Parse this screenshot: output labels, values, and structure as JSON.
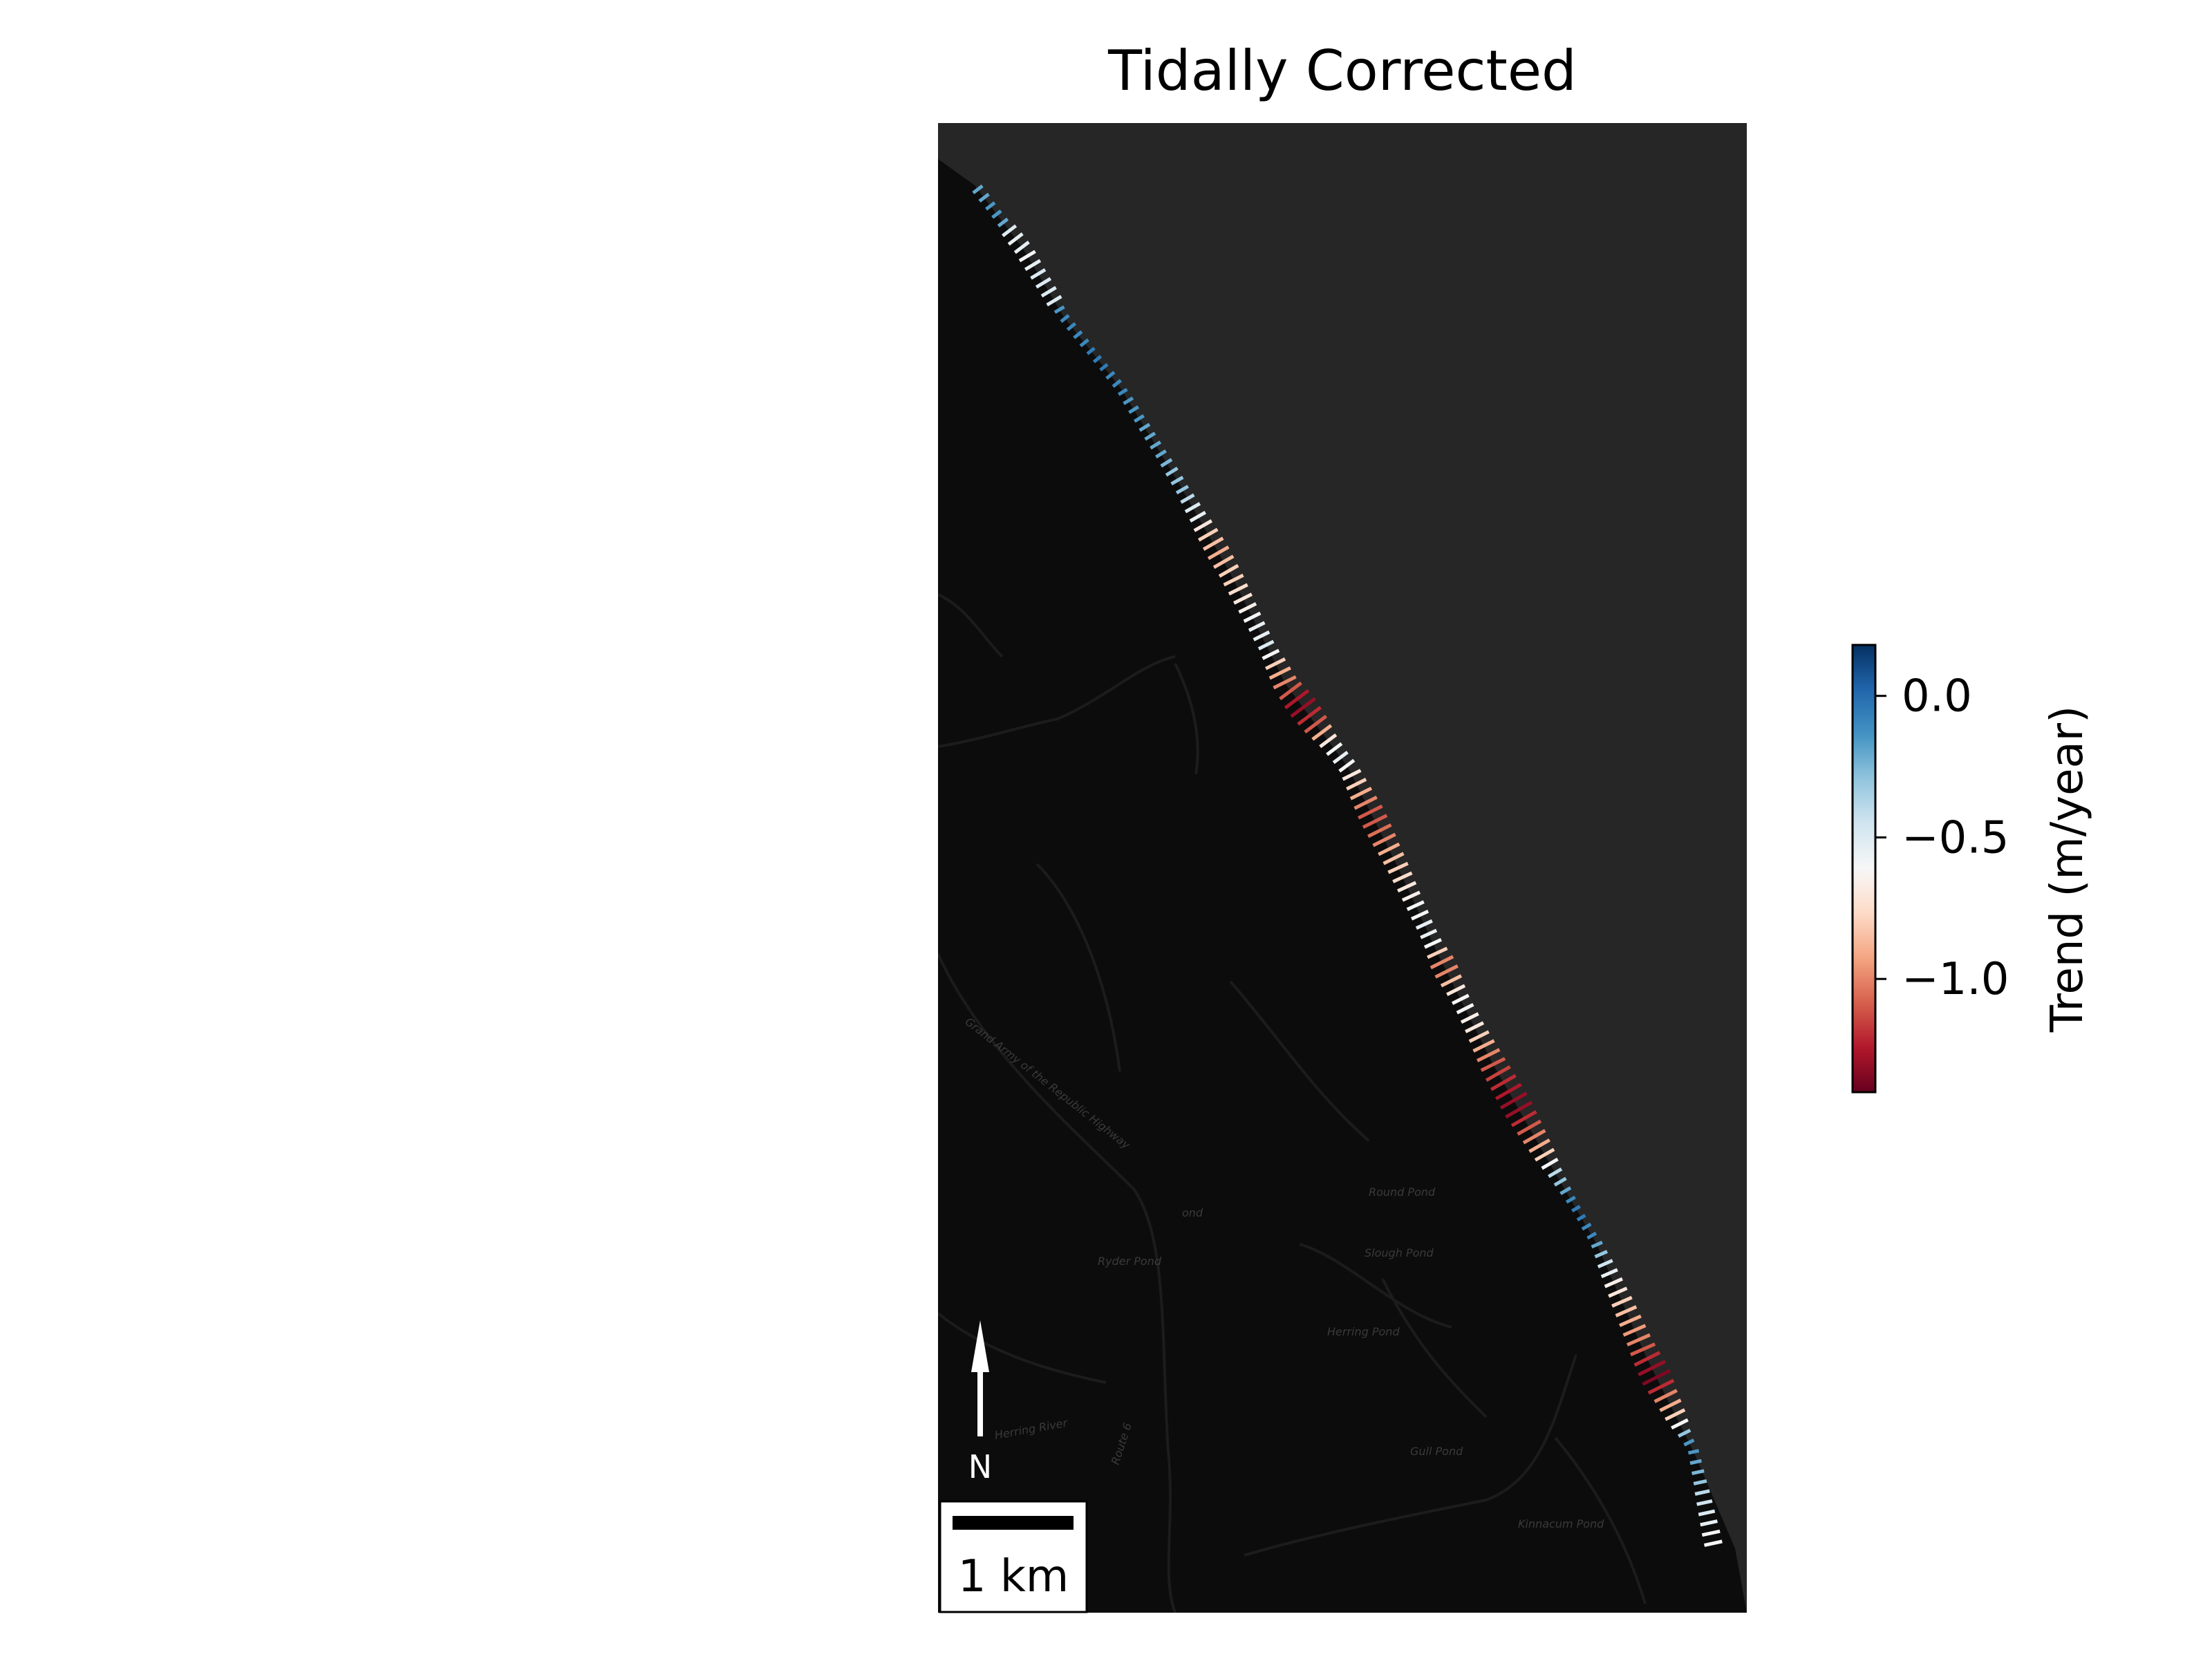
{
  "title": "Tidally Corrected",
  "map": {
    "place_labels": [
      "Round Pond",
      "Slough Pond",
      "Ryder Pond",
      "Herring Pond",
      "Gull Pond",
      "Kinnacum Pond",
      "Grand Army of the Republic Highway",
      "Herring River",
      "Route 6",
      "ond"
    ],
    "colors": {
      "land": "#0c0c0c",
      "water": "#262626",
      "roads": "#1c1c1c"
    }
  },
  "north_arrow": {
    "label": "N"
  },
  "scale_bar": {
    "label": "1 km"
  },
  "colorbar": {
    "label": "Trend (m/year)",
    "min": -1.4,
    "max": 0.18,
    "ticks": [
      {
        "value": 0.0,
        "label": "0.0"
      },
      {
        "value": -0.5,
        "label": "−0.5"
      },
      {
        "value": -1.0,
        "label": "−1.0"
      }
    ],
    "colormap": "RdBu",
    "color_stops": [
      "#67001f",
      "#b2182b",
      "#d6604d",
      "#f4a582",
      "#fddbc7",
      "#f7f7f7",
      "#d1e5f0",
      "#92c5de",
      "#4393c3",
      "#2166ac",
      "#053061"
    ]
  },
  "chart_data": {
    "type": "scatter",
    "title": "Tidally Corrected",
    "colorbar_label": "Trend (m/year)",
    "colorbar_range": [
      -1.4,
      0.18
    ],
    "transect_trends": [
      -0.2,
      -0.2,
      -0.15,
      -0.15,
      -0.2,
      -0.5,
      -0.55,
      -0.55,
      -0.6,
      -0.55,
      -0.5,
      -0.5,
      -0.5,
      -0.5,
      -0.15,
      -0.1,
      -0.1,
      -0.1,
      -0.1,
      -0.05,
      -0.05,
      -0.05,
      -0.1,
      -0.1,
      -0.1,
      -0.15,
      -0.15,
      -0.15,
      -0.2,
      -0.2,
      -0.2,
      -0.2,
      -0.25,
      -0.3,
      -0.3,
      -0.3,
      -0.4,
      -0.5,
      -0.55,
      -0.7,
      -0.8,
      -0.85,
      -0.9,
      -0.85,
      -0.8,
      -0.8,
      -0.75,
      -0.7,
      -0.65,
      -0.6,
      -0.55,
      -0.55,
      -0.5,
      -0.6,
      -0.8,
      -0.9,
      -1.0,
      -1.1,
      -1.25,
      -1.3,
      -1.2,
      -1.1,
      -0.9,
      -0.7,
      -0.6,
      -0.55,
      -0.6,
      -0.7,
      -0.8,
      -0.9,
      -1.0,
      -1.1,
      -1.1,
      -1.05,
      -1.0,
      -0.9,
      -0.85,
      -0.8,
      -0.75,
      -0.7,
      -0.65,
      -0.6,
      -0.6,
      -0.55,
      -0.55,
      -0.6,
      -0.8,
      -1.0,
      -1.0,
      -0.85,
      -0.7,
      -0.6,
      -0.6,
      -0.65,
      -0.7,
      -0.8,
      -0.9,
      -1.0,
      -1.1,
      -1.15,
      -1.2,
      -1.25,
      -1.3,
      -1.3,
      -1.2,
      -1.1,
      -1.0,
      -0.9,
      -0.8,
      -0.6,
      -0.4,
      -0.3,
      -0.2,
      -0.1,
      -0.05,
      -0.05,
      -0.1,
      -0.1,
      -0.2,
      -0.3,
      -0.45,
      -0.55,
      -0.65,
      -0.7,
      -0.8,
      -0.85,
      -0.9,
      -0.95,
      -1.0,
      -1.1,
      -1.2,
      -1.3,
      -1.35,
      -1.2,
      -1.0,
      -0.9,
      -0.8,
      -0.6,
      -0.3,
      -0.15,
      -0.15,
      -0.2,
      -0.25,
      -0.3,
      -0.4,
      -0.45,
      -0.5,
      -0.55,
      -0.6,
      -0.6
    ]
  }
}
